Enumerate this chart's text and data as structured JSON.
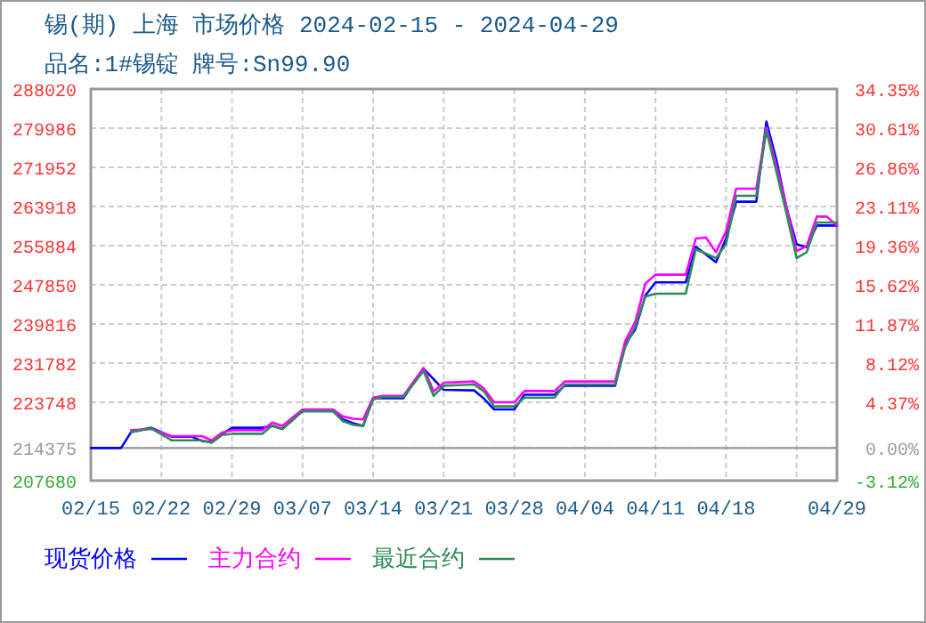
{
  "chart_data": {
    "type": "line",
    "title": "锡(期) 上海 市场价格 2024-02-15 - 2024-04-29",
    "subtitle": "品名:1#锡锭 牌号:Sn99.90",
    "xlim": [
      "2024-02-15",
      "2024-04-29"
    ],
    "xticks": [
      {
        "value": "2024-02-15",
        "label": "02/15"
      },
      {
        "value": "2024-02-22",
        "label": "02/22"
      },
      {
        "value": "2024-02-29",
        "label": "02/29"
      },
      {
        "value": "2024-03-07",
        "label": "03/07"
      },
      {
        "value": "2024-03-14",
        "label": "03/14"
      },
      {
        "value": "2024-03-21",
        "label": "03/21"
      },
      {
        "value": "2024-03-28",
        "label": "03/28"
      },
      {
        "value": "2024-04-04",
        "label": "04/04"
      },
      {
        "value": "2024-04-11",
        "label": "04/11"
      },
      {
        "value": "2024-04-18",
        "label": "04/18"
      },
      {
        "value": "2024-04-25",
        "label": null
      },
      {
        "value": "2024-04-29",
        "label": "04/29"
      }
    ],
    "ylim": [
      207680,
      288020
    ],
    "yticks": [
      207680,
      214375,
      223748,
      231782,
      239816,
      247850,
      255884,
      263918,
      271952,
      279986,
      288020
    ],
    "y2lim": [
      -3.12,
      34.35
    ],
    "y2ticks": [
      {
        "value": -3.12,
        "label": "-3.12%"
      },
      {
        "value": 0,
        "label": "0.00%"
      },
      {
        "value": 4.37,
        "label": "4.37%"
      },
      {
        "value": 8.12,
        "label": "8.12%"
      },
      {
        "value": 11.87,
        "label": "11.87%"
      },
      {
        "value": 15.62,
        "label": "15.62%"
      },
      {
        "value": 19.36,
        "label": "19.36%"
      },
      {
        "value": 23.11,
        "label": "23.11%"
      },
      {
        "value": 26.86,
        "label": "26.86%"
      },
      {
        "value": 30.61,
        "label": "30.61%"
      },
      {
        "value": 34.35,
        "label": "34.35%"
      }
    ],
    "ref_lines": [
      {
        "axis": "y",
        "value": 214375,
        "color": "#999999",
        "line_style": "solid"
      }
    ],
    "grid": true,
    "legend": "bottom",
    "series": [
      {
        "name": "现货价格",
        "color": "#0000ff",
        "x": [
          "2024-02-15",
          "2024-02-18",
          "2024-02-19",
          "2024-02-21",
          "2024-02-23",
          "2024-02-25",
          "2024-02-26",
          "2024-02-27",
          "2024-02-28",
          "2024-02-29",
          "2024-03-03",
          "2024-03-04",
          "2024-03-05",
          "2024-03-07",
          "2024-03-10",
          "2024-03-11",
          "2024-03-12",
          "2024-03-13",
          "2024-03-14",
          "2024-03-17",
          "2024-03-19",
          "2024-03-21",
          "2024-03-24",
          "2024-03-25",
          "2024-03-26",
          "2024-03-28",
          "2024-03-29",
          "2024-04-01",
          "2024-04-02",
          "2024-04-07",
          "2024-04-08",
          "2024-04-09",
          "2024-04-10",
          "2024-04-11",
          "2024-04-14",
          "2024-04-15",
          "2024-04-17",
          "2024-04-18",
          "2024-04-19",
          "2024-04-21",
          "2024-04-22",
          "2024-04-23",
          "2024-04-24",
          "2024-04-25",
          "2024-04-26",
          "2024-04-27",
          "2024-04-29"
        ],
        "values": [
          214375,
          214375,
          217650,
          218520,
          216690,
          216690,
          215820,
          215570,
          217200,
          218520,
          218520,
          218890,
          218280,
          221940,
          221940,
          220240,
          219470,
          218890,
          224600,
          224600,
          230680,
          226300,
          226200,
          224470,
          222280,
          222280,
          225310,
          225310,
          227150,
          227150,
          235680,
          238720,
          245650,
          248350,
          248350,
          255630,
          252490,
          257340,
          264900,
          264900,
          281330,
          273410,
          263660,
          256140,
          255580,
          260010,
          260010
        ]
      },
      {
        "name": "主力合约",
        "color": "#ff00ff",
        "x": [
          "2024-02-19",
          "2024-02-21",
          "2024-02-23",
          "2024-02-26",
          "2024-02-27",
          "2024-02-28",
          "2024-02-29",
          "2024-03-03",
          "2024-03-04",
          "2024-03-05",
          "2024-03-07",
          "2024-03-10",
          "2024-03-11",
          "2024-03-12",
          "2024-03-13",
          "2024-03-14",
          "2024-03-15",
          "2024-03-17",
          "2024-03-19",
          "2024-03-20",
          "2024-03-21",
          "2024-03-24",
          "2024-03-25",
          "2024-03-26",
          "2024-03-28",
          "2024-03-29",
          "2024-04-01",
          "2024-04-02",
          "2024-04-07",
          "2024-04-08",
          "2024-04-09",
          "2024-04-10",
          "2024-04-11",
          "2024-04-14",
          "2024-04-15",
          "2024-04-16",
          "2024-04-17",
          "2024-04-18",
          "2024-04-19",
          "2024-04-21",
          "2024-04-22",
          "2024-04-23",
          "2024-04-24",
          "2024-04-25",
          "2024-04-26",
          "2024-04-27",
          "2024-04-28",
          "2024-04-29"
        ],
        "values": [
          218020,
          218280,
          216820,
          216820,
          215950,
          217520,
          218020,
          218020,
          219590,
          218890,
          222280,
          222280,
          220850,
          220360,
          220240,
          224720,
          225070,
          225070,
          230810,
          225960,
          227760,
          228010,
          226550,
          223740,
          223740,
          226050,
          226050,
          228010,
          228010,
          236290,
          240300,
          248100,
          249930,
          249930,
          257340,
          257580,
          254540,
          258800,
          267570,
          267570,
          280100,
          272210,
          263660,
          254790,
          255770,
          261840,
          261840,
          260010
        ]
      },
      {
        "name": "最近合约",
        "color": "#2e8b57",
        "x": [
          "2024-02-19",
          "2024-02-21",
          "2024-02-23",
          "2024-02-26",
          "2024-02-27",
          "2024-02-28",
          "2024-02-29",
          "2024-03-03",
          "2024-03-04",
          "2024-03-05",
          "2024-03-07",
          "2024-03-10",
          "2024-03-11",
          "2024-03-12",
          "2024-03-13",
          "2024-03-14",
          "2024-03-15",
          "2024-03-17",
          "2024-03-19",
          "2024-03-20",
          "2024-03-21",
          "2024-03-24",
          "2024-03-25",
          "2024-03-26",
          "2024-03-28",
          "2024-03-29",
          "2024-04-01",
          "2024-04-02",
          "2024-04-07",
          "2024-04-08",
          "2024-04-09",
          "2024-04-10",
          "2024-04-11",
          "2024-04-14",
          "2024-04-15",
          "2024-04-17",
          "2024-04-18",
          "2024-04-19",
          "2024-04-21",
          "2024-04-22",
          "2024-04-23",
          "2024-04-24",
          "2024-04-25",
          "2024-04-26",
          "2024-04-27",
          "2024-04-29"
        ],
        "values": [
          217650,
          218400,
          215950,
          215950,
          215450,
          217030,
          217280,
          217280,
          219010,
          218280,
          221940,
          221940,
          219870,
          219140,
          218890,
          224350,
          224840,
          224840,
          230200,
          225070,
          227150,
          227400,
          225960,
          222900,
          222900,
          224720,
          224720,
          227400,
          227400,
          235070,
          239330,
          245420,
          246020,
          246020,
          255160,
          253340,
          256140,
          266110,
          266110,
          279490,
          270990,
          262440,
          253330,
          254540,
          260620,
          260620
        ]
      }
    ]
  }
}
